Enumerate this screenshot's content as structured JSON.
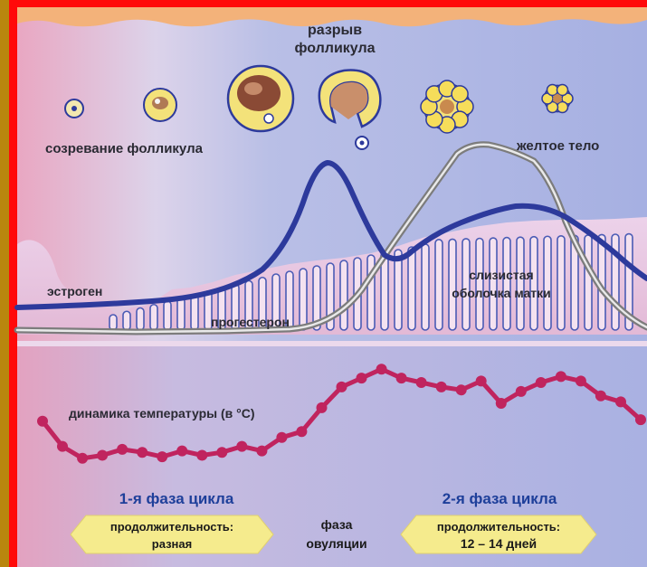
{
  "labels": {
    "rupture_line1": "разрыв",
    "rupture_line2": "фолликула",
    "maturation": "созревание фолликула",
    "corpus_luteum": "желтое тело",
    "estrogen": "эстроген",
    "progesterone": "прогестерон",
    "endometrium_line1": "слизистая",
    "endometrium_line2": "оболочка матки",
    "temperature": "динамика температуры (в °С)"
  },
  "phases": {
    "phase1": {
      "title": "1-я фаза цикла",
      "duration_label": "продолжительность:",
      "duration_value": "разная"
    },
    "ovulation": {
      "line1": "фаза",
      "line2": "овуляции"
    },
    "phase2": {
      "title": "2-я фаза цикла",
      "duration_label": "продолжительность:",
      "duration_value": "12 – 14 дней"
    }
  },
  "colors": {
    "frame": "#ff0a0a",
    "outer_border": "#b9860e",
    "estrogen_curve": "#2d3a9c",
    "progesterone_curve": "#8a8a8a",
    "temperature_curve": "#c0245e",
    "follicle_fill": "#f3e27a",
    "phase_title": "#1e3f9a",
    "pill_fill": "#f5eb8d"
  },
  "follicle_stages": [
    "small-follicle",
    "growing-follicle",
    "mature-follicle",
    "ruptured-follicle",
    "corpus-luteum",
    "regressing-corpus-luteum"
  ],
  "chart_data": {
    "type": "line",
    "series": [
      {
        "name": "динамика температуры (в °С)",
        "points": [
          [
            1,
            5.5
          ],
          [
            2,
            3.8
          ],
          [
            3,
            3.0
          ],
          [
            4,
            3.2
          ],
          [
            5,
            3.6
          ],
          [
            6,
            3.4
          ],
          [
            7,
            3.1
          ],
          [
            8,
            3.5
          ],
          [
            9,
            3.2
          ],
          [
            10,
            3.4
          ],
          [
            11,
            3.8
          ],
          [
            12,
            3.5
          ],
          [
            13,
            4.4
          ],
          [
            14,
            4.8
          ],
          [
            15,
            6.4
          ],
          [
            16,
            7.8
          ],
          [
            17,
            8.4
          ],
          [
            18,
            9.0
          ],
          [
            19,
            8.4
          ],
          [
            20,
            8.1
          ],
          [
            21,
            7.8
          ],
          [
            22,
            7.6
          ],
          [
            23,
            8.2
          ],
          [
            24,
            6.7
          ],
          [
            25,
            7.5
          ],
          [
            26,
            8.1
          ],
          [
            27,
            8.5
          ],
          [
            28,
            8.2
          ],
          [
            29,
            7.2
          ],
          [
            30,
            6.8
          ],
          [
            31,
            5.6
          ]
        ]
      }
    ],
    "xlabel": "",
    "ylabel": ""
  }
}
